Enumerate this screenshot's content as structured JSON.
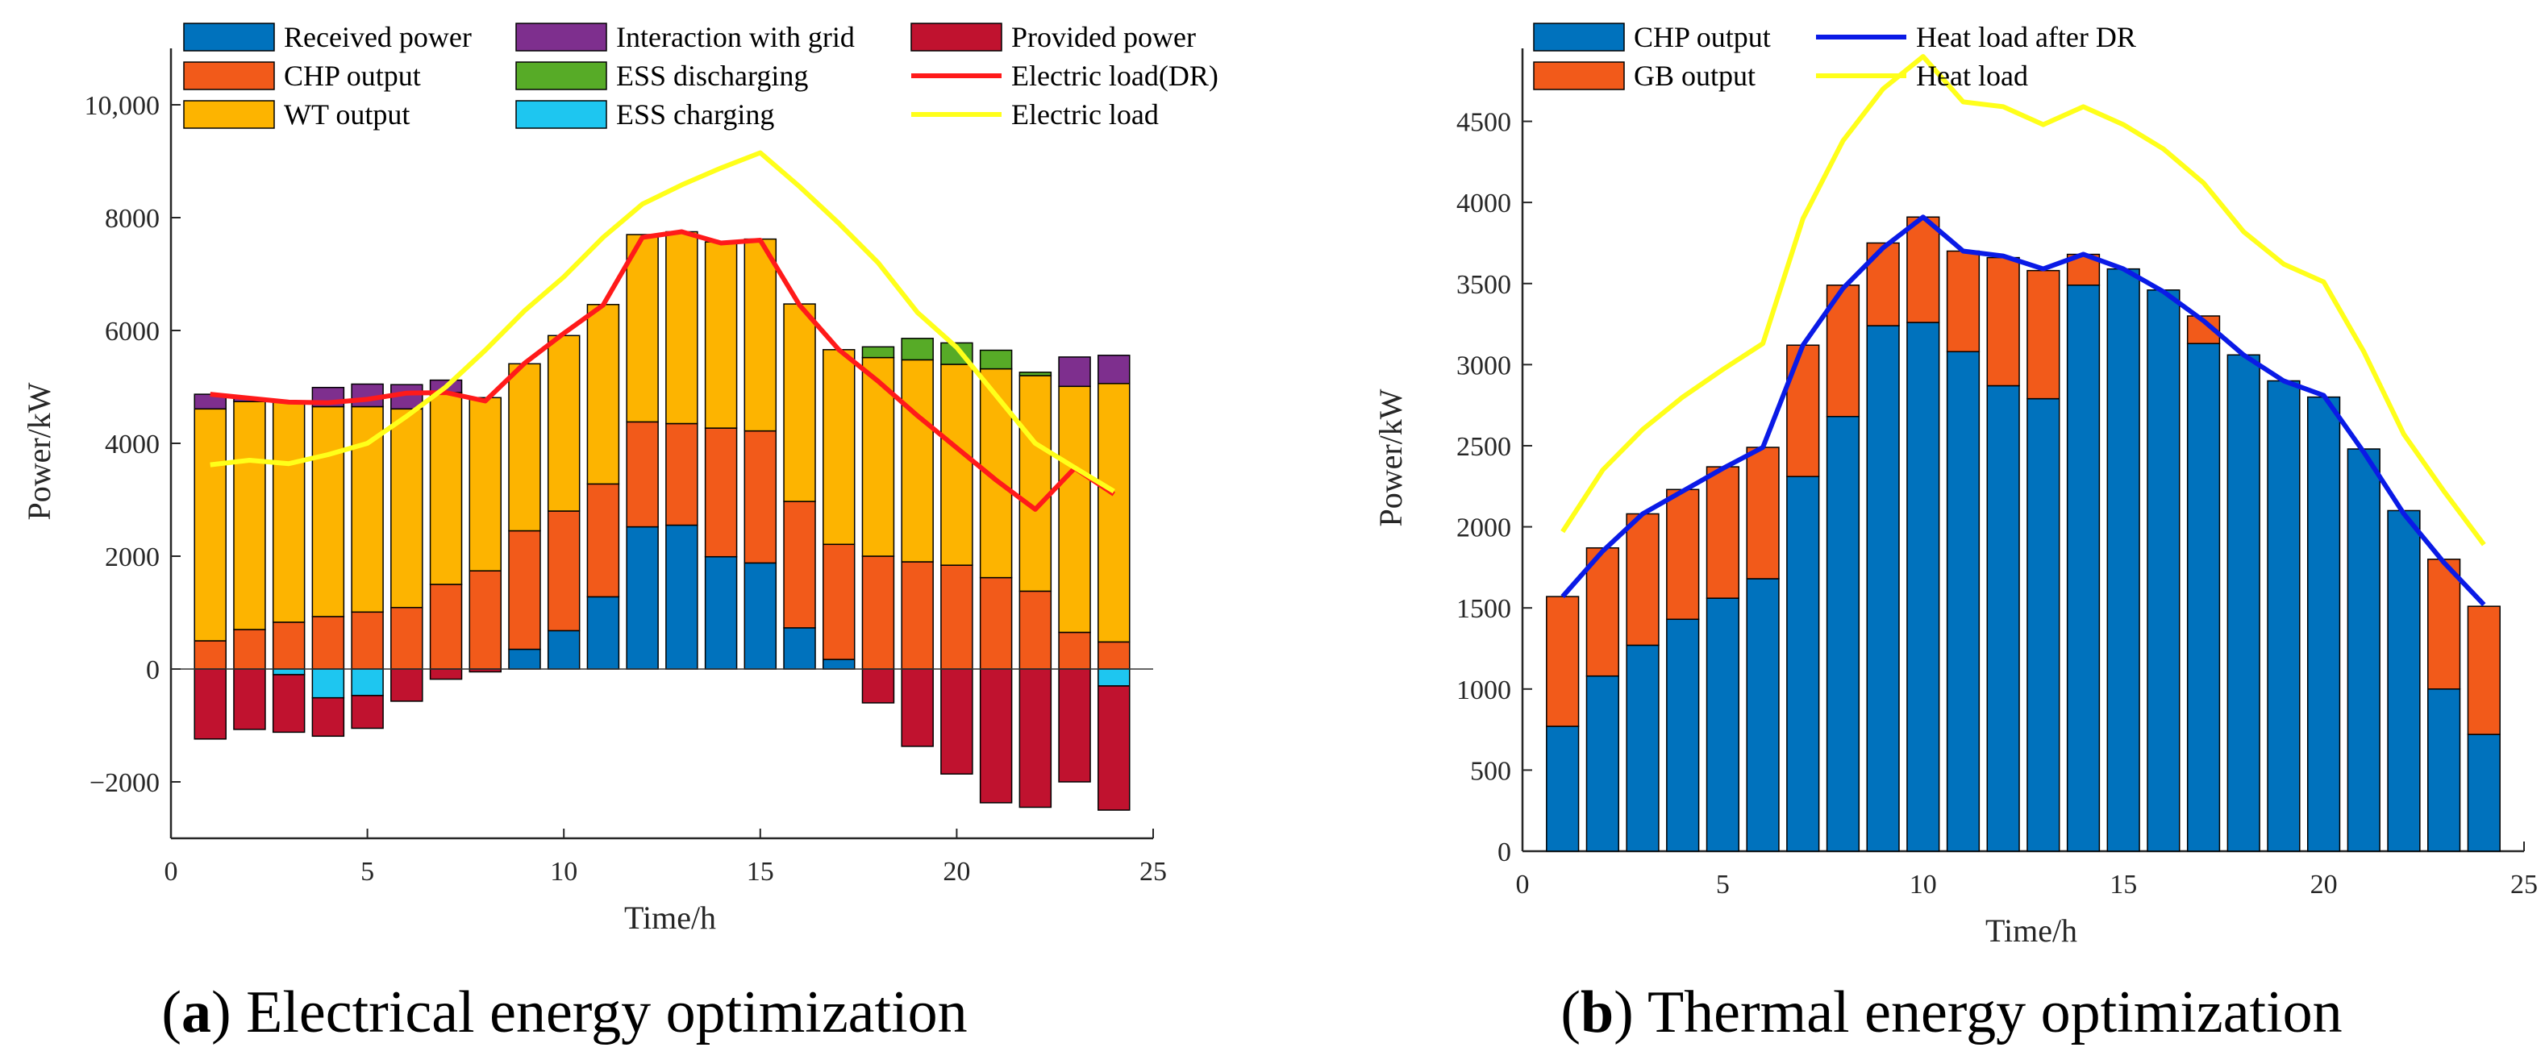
{
  "colors": {
    "received": "#0072BD",
    "chp": "#F25A1A",
    "wt": "#FDB400",
    "grid": "#7E2F8E",
    "ess_dis": "#57AB27",
    "ess_ch": "#1EC6F0",
    "provided": "#C0122F",
    "elec_dr": "#FF1A1A",
    "elec_load": "#FFFF1A",
    "heat_dr": "#0A1AE6",
    "heat_load": "#FFFF1A",
    "gb": "#F25A1A"
  },
  "chart_data": [
    {
      "type": "bar",
      "stacked": true,
      "id": "a",
      "caption_letter": "a",
      "caption_text": " Electrical energy optimization",
      "caption_open": "(",
      "caption_close": ")",
      "xlabel": "Time/h",
      "ylabel": "Power/kW",
      "xlim": [
        0,
        25
      ],
      "ylim": [
        -3000,
        11000
      ],
      "xticks": [
        0,
        5,
        10,
        15,
        20,
        25
      ],
      "yticks": [
        -2000,
        0,
        2000,
        4000,
        6000,
        8000,
        10000
      ],
      "ytick_labels": [
        "−2000",
        "0",
        "2000",
        "4000",
        "6000",
        "8000",
        "10,000"
      ],
      "x": [
        1,
        2,
        3,
        4,
        5,
        6,
        7,
        8,
        9,
        10,
        11,
        12,
        13,
        14,
        15,
        16,
        17,
        18,
        19,
        20,
        21,
        22,
        23,
        24
      ],
      "positive_series": [
        {
          "name": "Received power",
          "color_key": "received",
          "values": [
            0,
            0,
            0,
            0,
            0,
            0,
            0,
            0,
            350,
            680,
            1280,
            2520,
            2550,
            1990,
            1880,
            730,
            170,
            0,
            0,
            0,
            0,
            0,
            0,
            0
          ]
        },
        {
          "name": "CHP output",
          "color_key": "chp",
          "values": [
            500,
            700,
            830,
            930,
            1010,
            1090,
            1500,
            1740,
            2100,
            2120,
            2000,
            1860,
            1800,
            2280,
            2340,
            2240,
            2040,
            2000,
            1900,
            1840,
            1620,
            1380,
            650,
            480
          ]
        },
        {
          "name": "WT output",
          "color_key": "wt",
          "values": [
            4110,
            4040,
            3900,
            3720,
            3640,
            3520,
            3400,
            3070,
            2960,
            3110,
            3180,
            3320,
            3400,
            3300,
            3400,
            3500,
            3450,
            3520,
            3580,
            3560,
            3700,
            3820,
            4360,
            4580
          ]
        },
        {
          "name": "ESS discharging",
          "color_key": "ess_dis",
          "values": [
            0,
            0,
            0,
            0,
            0,
            0,
            0,
            0,
            0,
            0,
            0,
            0,
            0,
            0,
            0,
            0,
            0,
            190,
            380,
            380,
            330,
            60,
            0,
            0
          ]
        },
        {
          "name": "Interaction with grid",
          "color_key": "grid",
          "values": [
            260,
            60,
            0,
            340,
            400,
            430,
            220,
            0,
            0,
            0,
            0,
            0,
            0,
            0,
            0,
            0,
            0,
            0,
            0,
            0,
            0,
            0,
            520,
            500
          ]
        }
      ],
      "negative_series": [
        {
          "name": "ESS charging",
          "color_key": "ess_ch",
          "values": [
            0,
            0,
            -100,
            -510,
            -470,
            0,
            0,
            0,
            0,
            0,
            0,
            0,
            0,
            0,
            0,
            0,
            0,
            0,
            0,
            0,
            0,
            0,
            0,
            -300
          ]
        },
        {
          "name": "Provided power",
          "color_key": "provided",
          "values": [
            -1240,
            -1070,
            -1020,
            -680,
            -580,
            -570,
            -180,
            -50,
            0,
            0,
            0,
            0,
            0,
            0,
            0,
            0,
            0,
            -600,
            -1370,
            -1860,
            -2370,
            -2450,
            -2000,
            -2200
          ]
        }
      ],
      "lines": [
        {
          "name": " Electric load(DR)",
          "color_key": "elec_dr",
          "x": [
            1,
            2,
            3,
            4,
            5,
            6,
            7,
            8,
            9,
            10,
            11,
            12,
            13,
            14,
            15,
            16,
            17,
            18,
            19,
            20,
            21,
            22,
            23,
            24
          ],
          "values": [
            4870,
            4800,
            4730,
            4720,
            4780,
            4890,
            4900,
            4750,
            5420,
            5950,
            6450,
            7650,
            7750,
            7550,
            7600,
            6450,
            5660,
            5100,
            4490,
            3920,
            3350,
            2830,
            3560,
            3100
          ]
        },
        {
          "name": "Electric load",
          "color_key": "elec_load",
          "x": [
            1,
            2,
            3,
            4,
            5,
            6,
            7,
            8,
            9,
            10,
            11,
            12,
            13,
            14,
            15,
            16,
            17,
            18,
            19,
            20,
            21,
            22,
            23,
            24
          ],
          "values": [
            3620,
            3700,
            3640,
            3800,
            4000,
            4480,
            5000,
            5650,
            6350,
            6950,
            7650,
            8240,
            8580,
            8880,
            9150,
            8550,
            7900,
            7200,
            6320,
            5700,
            4850,
            4000,
            3570,
            3150
          ]
        }
      ],
      "legend_cols": [
        [
          "Received power",
          "CHP output",
          "WT output"
        ],
        [
          "Interaction with grid",
          "ESS discharging",
          "ESS charging"
        ],
        [
          "Provided power",
          " Electric load(DR)",
          "Electric load"
        ]
      ]
    },
    {
      "type": "bar",
      "stacked": true,
      "id": "b",
      "caption_letter": "b",
      "caption_text": " Thermal energy optimization",
      "caption_open": "(",
      "caption_close": ")",
      "xlabel": "Time/h",
      "ylabel": "Power/kW",
      "xlim": [
        0,
        25
      ],
      "ylim": [
        0,
        4950
      ],
      "xticks": [
        0,
        5,
        10,
        15,
        20,
        25
      ],
      "yticks": [
        0,
        500,
        1000,
        1500,
        2000,
        2500,
        3000,
        3500,
        4000,
        4500
      ],
      "ytick_labels": [
        "0",
        "500",
        "1000",
        "1500",
        "2000",
        "2500",
        "3000",
        "3500",
        "4000",
        "4500"
      ],
      "x": [
        1,
        2,
        3,
        4,
        5,
        6,
        7,
        8,
        9,
        10,
        11,
        12,
        13,
        14,
        15,
        16,
        17,
        18,
        19,
        20,
        21,
        22,
        23,
        24
      ],
      "positive_series": [
        {
          "name": "CHP output",
          "color_key": "received",
          "values": [
            770,
            1080,
            1270,
            1430,
            1560,
            1680,
            2310,
            2680,
            3240,
            3260,
            3080,
            2870,
            2790,
            3490,
            3590,
            3460,
            3130,
            3060,
            2900,
            2800,
            2480,
            2100,
            1000,
            720
          ]
        },
        {
          "name": "GB output",
          "color_key": "gb",
          "values": [
            800,
            790,
            810,
            800,
            810,
            810,
            810,
            810,
            510,
            650,
            620,
            790,
            790,
            190,
            0,
            0,
            170,
            0,
            0,
            0,
            0,
            0,
            800,
            790
          ]
        }
      ],
      "negative_series": [],
      "lines": [
        {
          "name": "Heat load after DR",
          "color_key": "heat_dr",
          "x": [
            1,
            2,
            3,
            4,
            5,
            6,
            7,
            8,
            9,
            10,
            11,
            12,
            13,
            14,
            15,
            16,
            17,
            18,
            19,
            20,
            21,
            22,
            23,
            24
          ],
          "values": [
            1570,
            1850,
            2080,
            2220,
            2360,
            2490,
            3120,
            3470,
            3720,
            3910,
            3700,
            3670,
            3590,
            3680,
            3590,
            3450,
            3270,
            3060,
            2900,
            2810,
            2460,
            2080,
            1780,
            1520
          ]
        },
        {
          "name": "Heat load",
          "color_key": "heat_load",
          "x": [
            1,
            2,
            3,
            4,
            5,
            6,
            7,
            8,
            9,
            10,
            11,
            12,
            13,
            14,
            15,
            16,
            17,
            18,
            19,
            20,
            21,
            22,
            23,
            24
          ],
          "values": [
            1970,
            2350,
            2600,
            2800,
            2970,
            3130,
            3900,
            4380,
            4700,
            4900,
            4620,
            4590,
            4480,
            4590,
            4480,
            4330,
            4120,
            3820,
            3620,
            3510,
            3080,
            2570,
            2220,
            1890
          ]
        }
      ],
      "legend_cols": [
        [
          "CHP output",
          "GB output"
        ],
        [
          "Heat load after DR",
          "Heat load"
        ]
      ]
    }
  ]
}
